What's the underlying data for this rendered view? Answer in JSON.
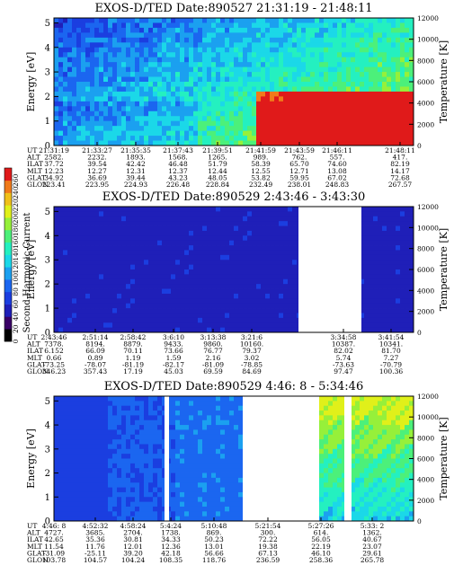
{
  "chart_data": [
    {
      "type": "heatmap",
      "title": "EXOS-D/TED  Date:890527  21:31:19 - 21:48:11",
      "ylabel": "Energy [eV]",
      "y2label": "Temperature [K]",
      "yticks": [
        "0",
        "1",
        "2",
        "3",
        "4",
        "5"
      ],
      "y2ticks": [
        "0",
        "2000",
        "4000",
        "6000",
        "8000",
        "10000",
        "12000"
      ],
      "ylim": [
        0,
        5.2
      ],
      "y2lim": [
        0,
        12000
      ],
      "orbit_rows": [
        "UT",
        "ALT",
        "ILAT",
        "MLT",
        "GLAT",
        "GLON"
      ],
      "orbit_cols": [
        [
          "21:31:19",
          "2582.",
          "37.72",
          "12.23",
          "34.92",
          "223.41"
        ],
        [
          "21:33:27",
          "2232.",
          "39.54",
          "12.27",
          "36.69",
          "223.95"
        ],
        [
          "21:35:35",
          "1893.",
          "42.42",
          "12.31",
          "39.44",
          "224.93"
        ],
        [
          "21:37:43",
          "1568.",
          "46.48",
          "12.37",
          "43.23",
          "226.48"
        ],
        [
          "21:39:51",
          "1265.",
          "51.79",
          "12.44",
          "48.05",
          "228.84"
        ],
        [
          "21:41:59",
          "989.",
          "58.39",
          "12.55",
          "53.82",
          "232.49"
        ],
        [
          "21:43:59",
          "762.",
          "65.70",
          "12.71",
          "59.95",
          "238.01"
        ],
        [
          "21:46:11",
          "557.",
          "74.60",
          "13.08",
          "67.02",
          "248.83"
        ],
        [
          "21:48:11",
          "417.",
          "82.19",
          "14.17",
          "72.68",
          "267.57"
        ]
      ]
    },
    {
      "type": "heatmap",
      "title": "EXOS-D/TED   Date:890529   2:43:46 - 3:43:30",
      "ylabel": "Energy [eV]",
      "y2label": "Temperature [K]",
      "yticks": [
        "0",
        "1",
        "2",
        "3",
        "4",
        "5"
      ],
      "y2ticks": [
        "0",
        "2000",
        "4000",
        "6000",
        "8000",
        "10000",
        "12000"
      ],
      "ylim": [
        0,
        5.2
      ],
      "y2lim": [
        0,
        12000
      ],
      "orbit_rows": [
        "UT",
        "ALT",
        "ILAT",
        "MLT",
        "GLAT",
        "GLON"
      ],
      "orbit_cols": [
        [
          "2:43:46",
          "7378.",
          "6.152",
          "0.66",
          "-73.25",
          "346.23"
        ],
        [
          "2:51:14",
          "8194.",
          "66.09",
          "0.89",
          "-78.07",
          "357.43"
        ],
        [
          "2:58:42",
          "8879.",
          "70.11",
          "1.19",
          "-81.19",
          "17.19"
        ],
        [
          "3:6:10",
          "9433.",
          "73.66",
          "1.59",
          "-82.17",
          "45.03"
        ],
        [
          "3:13:38",
          "9860.",
          "76.77",
          "2.16",
          "-81.09",
          "69.59"
        ],
        [
          "3:21:6",
          "10160.",
          "79.37",
          "3.02",
          "-78.85",
          "84.69"
        ],
        [
          "3:34:58",
          "10387.",
          "82.02",
          "5.74",
          "-73.63",
          "97.47"
        ],
        [
          "3:41:54",
          "10341.",
          "81.70",
          "7.27",
          "-70.79",
          "100.36"
        ]
      ]
    },
    {
      "type": "heatmap",
      "title": "EXOS-D/TED   Date:890529   4:46: 8 - 5:34:46",
      "ylabel": "Energy [eV]",
      "y2label": "Temperature [K]",
      "yticks": [
        "0",
        "1",
        "2",
        "3",
        "4",
        "5"
      ],
      "y2ticks": [
        "0",
        "2000",
        "4000",
        "6000",
        "8000",
        "10000",
        "12000"
      ],
      "ylim": [
        0,
        5.2
      ],
      "y2lim": [
        0,
        12000
      ],
      "orbit_rows": [
        "UT",
        "ALT",
        "ILAT",
        "MLT",
        "GLAT",
        "GLON"
      ],
      "orbit_cols": [
        [
          "4:46: 8",
          "4727.",
          "42.65",
          "11.54",
          "-31.09",
          "103.78"
        ],
        [
          "4:52:32",
          "3685.",
          "35.36",
          "11.76",
          "-25.11",
          "104.57"
        ],
        [
          "4:58:24",
          "2704.",
          "30.81",
          "12.01",
          "39.20",
          "104.24"
        ],
        [
          "5:4:24",
          "1738.",
          "34.33",
          "12.36",
          "42.18",
          "108.35"
        ],
        [
          "5:10:48",
          "869.",
          "50.23",
          "13.01",
          "56.66",
          "118.76"
        ],
        [
          "5:21:54",
          "300.",
          "72.22",
          "19.38",
          "67.13",
          "236.59"
        ],
        [
          "5:27:26",
          "614.",
          "56.05",
          "22.19",
          "46.10",
          "258.36"
        ],
        [
          "5:33: 2",
          "1362.",
          "40.67",
          "23.07",
          "29.61",
          "265.78"
        ]
      ]
    }
  ],
  "colorbar": {
    "label": "Second Harmonic Current",
    "ticks": [
      "0",
      "20",
      "40",
      "60",
      "80",
      "100",
      "120",
      "140",
      "160",
      "180",
      "200",
      "220",
      "240",
      "260"
    ],
    "colors": [
      "#000000",
      "#3a0066",
      "#1f1fb8",
      "#1b3ee0",
      "#1b66f0",
      "#1ba0f0",
      "#1bd8e8",
      "#24f0c0",
      "#4cf07a",
      "#96f03a",
      "#e0f01a",
      "#f0c01a",
      "#f07a1a",
      "#e01a1a"
    ]
  },
  "palette": {
    "background": "#2a2ad4",
    "axis": "#000000"
  }
}
